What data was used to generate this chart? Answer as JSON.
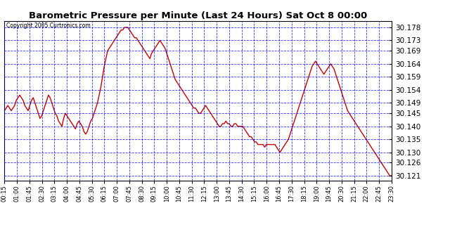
{
  "title": "Barometric Pressure per Minute (Last 24 Hours) Sat Oct 8 00:00",
  "copyright": "Copyright 2005 Curtronics.com",
  "background_color": "#ffffff",
  "plot_bg_color": "#ffffff",
  "grid_color": "#0000ff",
  "line_color": "#cc0000",
  "yticks": [
    30.121,
    30.126,
    30.13,
    30.135,
    30.14,
    30.145,
    30.149,
    30.154,
    30.159,
    30.164,
    30.169,
    30.173,
    30.178
  ],
  "ylim": [
    30.119,
    30.1805
  ],
  "xtick_labels": [
    "00:15",
    "01:00",
    "01:45",
    "02:30",
    "03:15",
    "04:00",
    "04:45",
    "05:30",
    "06:15",
    "07:00",
    "07:45",
    "08:30",
    "09:15",
    "10:00",
    "10:45",
    "11:30",
    "12:15",
    "13:00",
    "13:45",
    "14:30",
    "15:15",
    "16:00",
    "16:45",
    "17:30",
    "18:15",
    "19:00",
    "19:45",
    "20:30",
    "21:15",
    "22:00",
    "22:45",
    "23:30"
  ],
  "pressure_data": [
    30.146,
    30.147,
    30.148,
    30.147,
    30.146,
    30.147,
    30.148,
    30.15,
    30.151,
    30.152,
    30.151,
    30.15,
    30.148,
    30.147,
    30.146,
    30.148,
    30.15,
    30.151,
    30.149,
    30.147,
    30.145,
    30.143,
    30.144,
    30.146,
    30.148,
    30.15,
    30.152,
    30.151,
    30.149,
    30.147,
    30.145,
    30.144,
    30.142,
    30.141,
    30.14,
    30.143,
    30.145,
    30.144,
    30.143,
    30.142,
    30.141,
    30.14,
    30.139,
    30.141,
    30.142,
    30.141,
    30.14,
    30.138,
    30.137,
    30.138,
    30.14,
    30.142,
    30.143,
    30.145,
    30.147,
    30.149,
    30.152,
    30.155,
    30.159,
    30.163,
    30.166,
    30.169,
    30.17,
    30.171,
    30.172,
    30.173,
    30.174,
    30.175,
    30.176,
    30.177,
    30.177,
    30.178,
    30.178,
    30.178,
    30.177,
    30.176,
    30.175,
    30.174,
    30.174,
    30.173,
    30.172,
    30.171,
    30.17,
    30.169,
    30.168,
    30.167,
    30.166,
    30.168,
    30.169,
    30.17,
    30.171,
    30.172,
    30.173,
    30.172,
    30.171,
    30.17,
    30.168,
    30.166,
    30.164,
    30.162,
    30.16,
    30.158,
    30.157,
    30.156,
    30.155,
    30.154,
    30.153,
    30.152,
    30.151,
    30.15,
    30.149,
    30.148,
    30.147,
    30.147,
    30.146,
    30.145,
    30.145,
    30.146,
    30.147,
    30.148,
    30.147,
    30.146,
    30.145,
    30.144,
    30.143,
    30.142,
    30.141,
    30.14,
    30.14,
    30.141,
    30.141,
    30.142,
    30.141,
    30.141,
    30.14,
    30.14,
    30.141,
    30.141,
    30.14,
    30.14,
    30.14,
    30.14,
    30.139,
    30.138,
    30.137,
    30.136,
    30.136,
    30.135,
    30.134,
    30.134,
    30.133,
    30.133,
    30.133,
    30.133,
    30.132,
    30.133,
    30.133,
    30.133,
    30.133,
    30.133,
    30.133,
    30.132,
    30.131,
    30.13,
    30.131,
    30.132,
    30.133,
    30.134,
    30.135,
    30.137,
    30.139,
    30.141,
    30.143,
    30.145,
    30.147,
    30.149,
    30.151,
    30.153,
    30.155,
    30.157,
    30.159,
    30.161,
    30.163,
    30.164,
    30.165,
    30.164,
    30.163,
    30.162,
    30.161,
    30.16,
    30.161,
    30.162,
    30.163,
    30.164,
    30.163,
    30.162,
    30.16,
    30.158,
    30.156,
    30.154,
    30.152,
    30.15,
    30.148,
    30.146,
    30.145,
    30.144,
    30.143,
    30.142,
    30.141,
    30.14,
    30.139,
    30.138,
    30.137,
    30.136,
    30.135,
    30.134,
    30.133,
    30.132,
    30.131,
    30.13,
    30.129,
    30.128,
    30.127,
    30.126,
    30.125,
    30.124,
    30.123,
    30.122,
    30.121,
    30.121
  ]
}
